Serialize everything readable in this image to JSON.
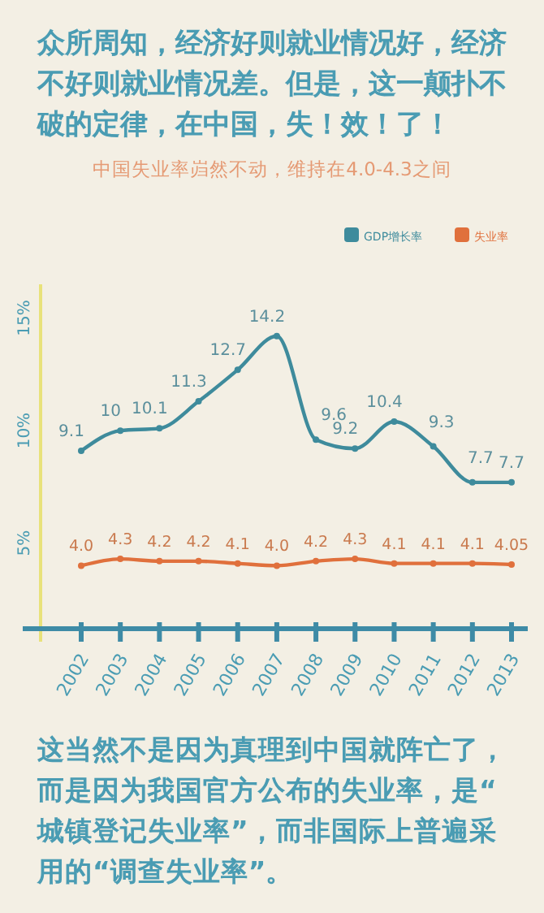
{
  "chart_data": {
    "type": "line",
    "title": "众所周知，经济好则就业情况好，经济不好则就业情况差。但是，这一颠扑不破的定律，在中国，失！效！了！",
    "subtitle": "中国失业率岿然不动，维持在4.0-4.3之间",
    "annotations": [
      "这当然不是因为真理到中国就阵亡了，而是因为我国官方公布的失业率，是“城镇登记失业率”，而非国际上普遍采用的“调查失业率”。"
    ],
    "categories": [
      "2002",
      "2003",
      "2004",
      "2005",
      "2006",
      "2007",
      "2008",
      "2009",
      "2010",
      "2011",
      "2012",
      "2013"
    ],
    "series": [
      {
        "name": "GDP增长率",
        "color": "#3e8b9c",
        "values": [
          9.1,
          10,
          10.1,
          11.3,
          12.7,
          14.2,
          9.6,
          9.2,
          10.4,
          9.3,
          7.7,
          7.7
        ]
      },
      {
        "name": "失业率",
        "color": "#e0703c",
        "values": [
          4.0,
          4.3,
          4.2,
          4.2,
          4.1,
          4.0,
          4.2,
          4.3,
          4.1,
          4.1,
          4.1,
          4.05
        ],
        "value_labels": [
          "4.0",
          "4.3",
          "4.2",
          "4.2",
          "4.1",
          "4.0",
          "4.2",
          "4.3",
          "4.1",
          "4.1",
          "4.1",
          "4.05"
        ]
      }
    ],
    "ylim": [
      1.2,
      16.5
    ],
    "yticks": [
      {
        "value": 5,
        "label": "5%"
      },
      {
        "value": 10,
        "label": "10%"
      },
      {
        "value": 15,
        "label": "15%"
      }
    ],
    "data_labels": true,
    "legend": "top right",
    "marker": "circle",
    "line_style": "solid",
    "grid": false
  }
}
